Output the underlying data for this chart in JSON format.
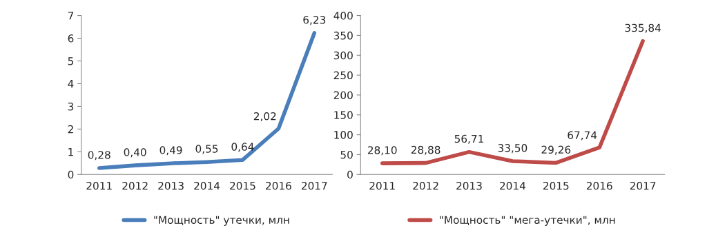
{
  "chart_data": [
    {
      "type": "line",
      "categories": [
        "2011",
        "2012",
        "2013",
        "2014",
        "2015",
        "2016",
        "2017"
      ],
      "ylim": [
        0,
        7
      ],
      "yticks": [
        0,
        1,
        2,
        3,
        4,
        5,
        6,
        7
      ],
      "legend": "bottom",
      "series": [
        {
          "name": "\"Мощность\" утечки, млн",
          "color": "#4a7ebb",
          "values": [
            0.28,
            0.4,
            0.49,
            0.55,
            0.64,
            2.02,
            6.23
          ],
          "value_labels": [
            "0,28",
            "0,40",
            "0,49",
            "0,55",
            "0,64",
            "2,02",
            "6,23"
          ]
        }
      ]
    },
    {
      "type": "line",
      "categories": [
        "2011",
        "2012",
        "2013",
        "2014",
        "2015",
        "2016",
        "2017"
      ],
      "ylim": [
        0,
        400
      ],
      "yticks": [
        0,
        50,
        100,
        150,
        200,
        250,
        300,
        350,
        400
      ],
      "legend": "bottom",
      "series": [
        {
          "name": "\"Мощность\" \"мега-утечки\", млн",
          "color": "#be4b48",
          "values": [
            28.1,
            28.88,
            56.71,
            33.5,
            29.26,
            67.74,
            335.84
          ],
          "value_labels": [
            "28,10",
            "28,88",
            "56,71",
            "33,50",
            "29,26",
            "67,74",
            "335,84"
          ]
        }
      ]
    }
  ]
}
